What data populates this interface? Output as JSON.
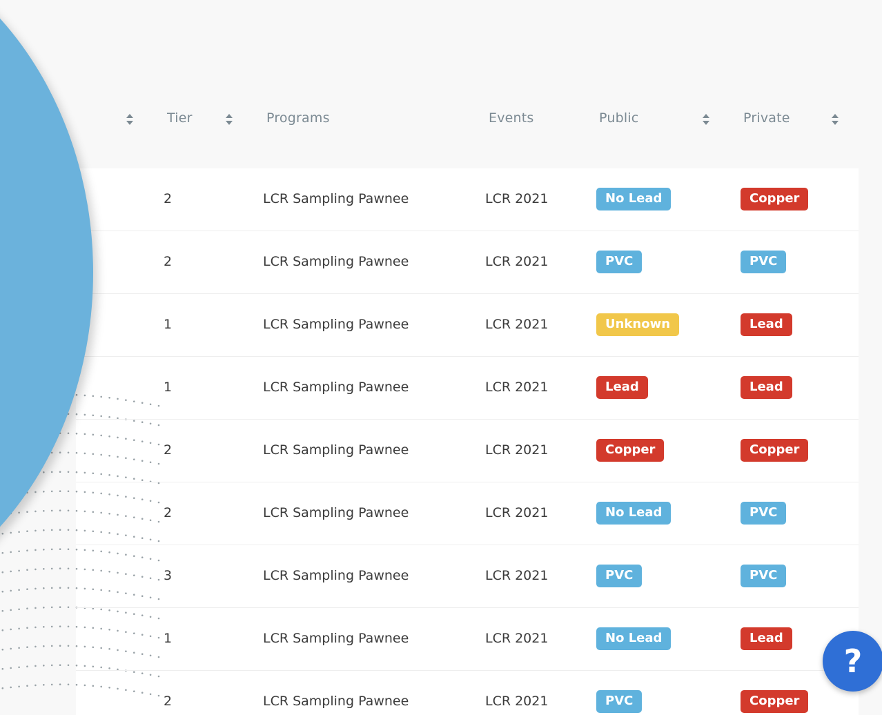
{
  "table": {
    "columns": [
      {
        "key": "tier",
        "label": "Tier"
      },
      {
        "key": "programs",
        "label": "Programs"
      },
      {
        "key": "events",
        "label": "Events"
      },
      {
        "key": "public",
        "label": "Public"
      },
      {
        "key": "private",
        "label": "Private"
      }
    ],
    "rows": [
      {
        "tier": "2",
        "program": "LCR Sampling Pawnee",
        "event": "LCR 2021",
        "public": {
          "label": "No Lead",
          "color": "blue"
        },
        "private": {
          "label": "Copper",
          "color": "red"
        }
      },
      {
        "tier": "2",
        "program": "LCR Sampling Pawnee",
        "event": "LCR 2021",
        "public": {
          "label": "PVC",
          "color": "blue"
        },
        "private": {
          "label": "PVC",
          "color": "blue"
        }
      },
      {
        "tier": "1",
        "program": "LCR Sampling Pawnee",
        "event": "LCR 2021",
        "public": {
          "label": "Unknown",
          "color": "yellow"
        },
        "private": {
          "label": "Lead",
          "color": "red"
        }
      },
      {
        "tier": "1",
        "program": "LCR Sampling Pawnee",
        "event": "LCR 2021",
        "public": {
          "label": "Lead",
          "color": "red"
        },
        "private": {
          "label": "Lead",
          "color": "red"
        }
      },
      {
        "tier": "2",
        "program": "LCR Sampling Pawnee",
        "event": "LCR 2021",
        "public": {
          "label": "Copper",
          "color": "red"
        },
        "private": {
          "label": "Copper",
          "color": "red"
        }
      },
      {
        "tier": "2",
        "program": "LCR Sampling Pawnee",
        "event": "LCR 2021",
        "public": {
          "label": "No Lead",
          "color": "blue"
        },
        "private": {
          "label": "PVC",
          "color": "blue"
        }
      },
      {
        "tier": "3",
        "program": "LCR Sampling Pawnee",
        "event": "LCR 2021",
        "public": {
          "label": "PVC",
          "color": "blue"
        },
        "private": {
          "label": "PVC",
          "color": "blue"
        }
      },
      {
        "tier": "1",
        "program": "LCR Sampling Pawnee",
        "event": "LCR 2021",
        "public": {
          "label": "No Lead",
          "color": "blue"
        },
        "private": {
          "label": "Lead",
          "color": "red"
        }
      },
      {
        "tier": "2",
        "program": "LCR Sampling Pawnee",
        "event": "LCR 2021",
        "public": {
          "label": "PVC",
          "color": "blue"
        },
        "private": {
          "label": "Copper",
          "color": "red"
        }
      }
    ]
  },
  "help_button": {
    "label": "?",
    "icon": "question-icon"
  },
  "colors": {
    "badge_blue": "#5fb2dd",
    "badge_red": "#d33a2c",
    "badge_yellow": "#f1c74a",
    "circle": "#6bb2dc",
    "help": "#2f6fd6"
  }
}
